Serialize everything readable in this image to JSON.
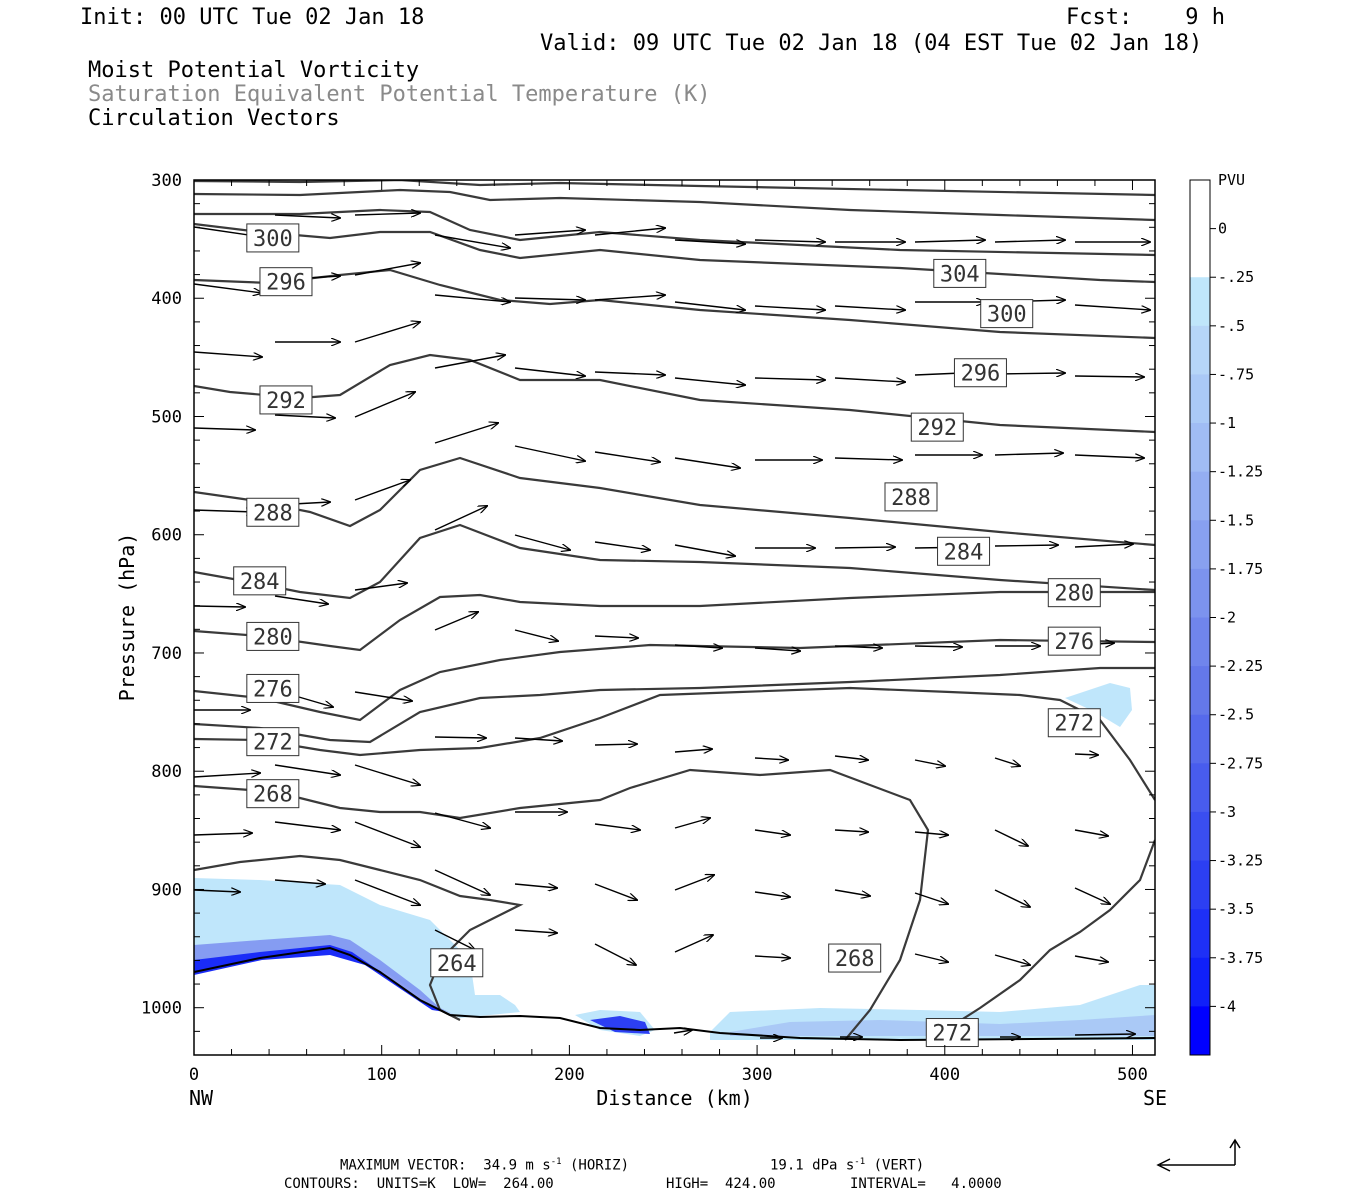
{
  "header": {
    "init": "Init: 00 UTC Tue 02 Jan 18",
    "fcst": "Fcst:    9 h",
    "valid": "Valid: 09 UTC Tue 02 Jan 18 (04 EST Tue 02 Jan 18)",
    "field1": "Moist Potential Vorticity",
    "field2": "Saturation Equivalent Potential Temperature (K)",
    "field3": "Circulation Vectors"
  },
  "colors": {
    "contour": "#3a3a3a",
    "field2_text": "#8a8a8a",
    "pv_fill_light": "#bfe6fb",
    "pv_fill_dark": "#0000ff"
  },
  "chart_data": {
    "type": "cross-section",
    "xlabel": "Distance (km)",
    "ylabel": "Pressure (hPa)",
    "xlim": [
      0,
      512
    ],
    "ylim": [
      300,
      1040
    ],
    "y_scale": "linear, inverted",
    "xticks": [
      0,
      100,
      200,
      300,
      400,
      500
    ],
    "yticks": [
      300,
      400,
      500,
      600,
      700,
      800,
      900,
      1000
    ],
    "x_end_labels": {
      "left": "NW",
      "right": "SE"
    },
    "colorbar": {
      "title": "PVU",
      "levels": [
        "0",
        "-.25",
        "-.5",
        "-.75",
        "-1",
        "-1.25",
        "-1.5",
        "-1.75",
        "-2",
        "-2.25",
        "-2.5",
        "-2.75",
        "-3",
        "-3.25",
        "-3.5",
        "-3.75",
        "-4"
      ],
      "colors": [
        "#ffffff",
        "#ffffff",
        "#bfe6fb",
        "#b6d6f8",
        "#aac9f6",
        "#a0bcf4",
        "#94aef2",
        "#88a0f0",
        "#7c93ee",
        "#7085ec",
        "#6478ea",
        "#566aec",
        "#485cee",
        "#3a4ef0",
        "#2c3ff3",
        "#1e30f6",
        "#1020f9",
        "#0000ff"
      ]
    },
    "contour_labels": [
      {
        "text": "300",
        "x": 42,
        "p": 349
      },
      {
        "text": "296",
        "x": 49,
        "p": 386
      },
      {
        "text": "292",
        "x": 49,
        "p": 486
      },
      {
        "text": "288",
        "x": 42,
        "p": 581
      },
      {
        "text": "284",
        "x": 35,
        "p": 639
      },
      {
        "text": "280",
        "x": 42,
        "p": 686
      },
      {
        "text": "276",
        "x": 42,
        "p": 730
      },
      {
        "text": "272",
        "x": 42,
        "p": 775
      },
      {
        "text": "268",
        "x": 42,
        "p": 819
      },
      {
        "text": "264",
        "x": 140,
        "p": 962
      },
      {
        "text": "268",
        "x": 352,
        "p": 958
      },
      {
        "text": "272",
        "x": 404,
        "p": 1021
      },
      {
        "text": "304",
        "x": 408,
        "p": 379
      },
      {
        "text": "300",
        "x": 433,
        "p": 413
      },
      {
        "text": "296",
        "x": 419,
        "p": 463
      },
      {
        "text": "292",
        "x": 396,
        "p": 509
      },
      {
        "text": "288",
        "x": 382,
        "p": 568
      },
      {
        "text": "284",
        "x": 410,
        "p": 614
      },
      {
        "text": "280",
        "x": 469,
        "p": 649
      },
      {
        "text": "276",
        "x": 469,
        "p": 690
      },
      {
        "text": "272",
        "x": 469,
        "p": 759
      }
    ],
    "max_vector_text": "MAXIMUM VECTOR:  34.9 m s",
    "max_vector_horiz": "(HORIZ)",
    "max_vector_vert_value": "19.1 dPa s",
    "max_vector_vert": "(VERT)",
    "exp_minus1": "-1",
    "contours_units": "CONTOURS:  UNITS=K  LOW=  264.00",
    "contours_high": "HIGH=  424.00",
    "contours_interval": "INTERVAL=   4.0000"
  }
}
